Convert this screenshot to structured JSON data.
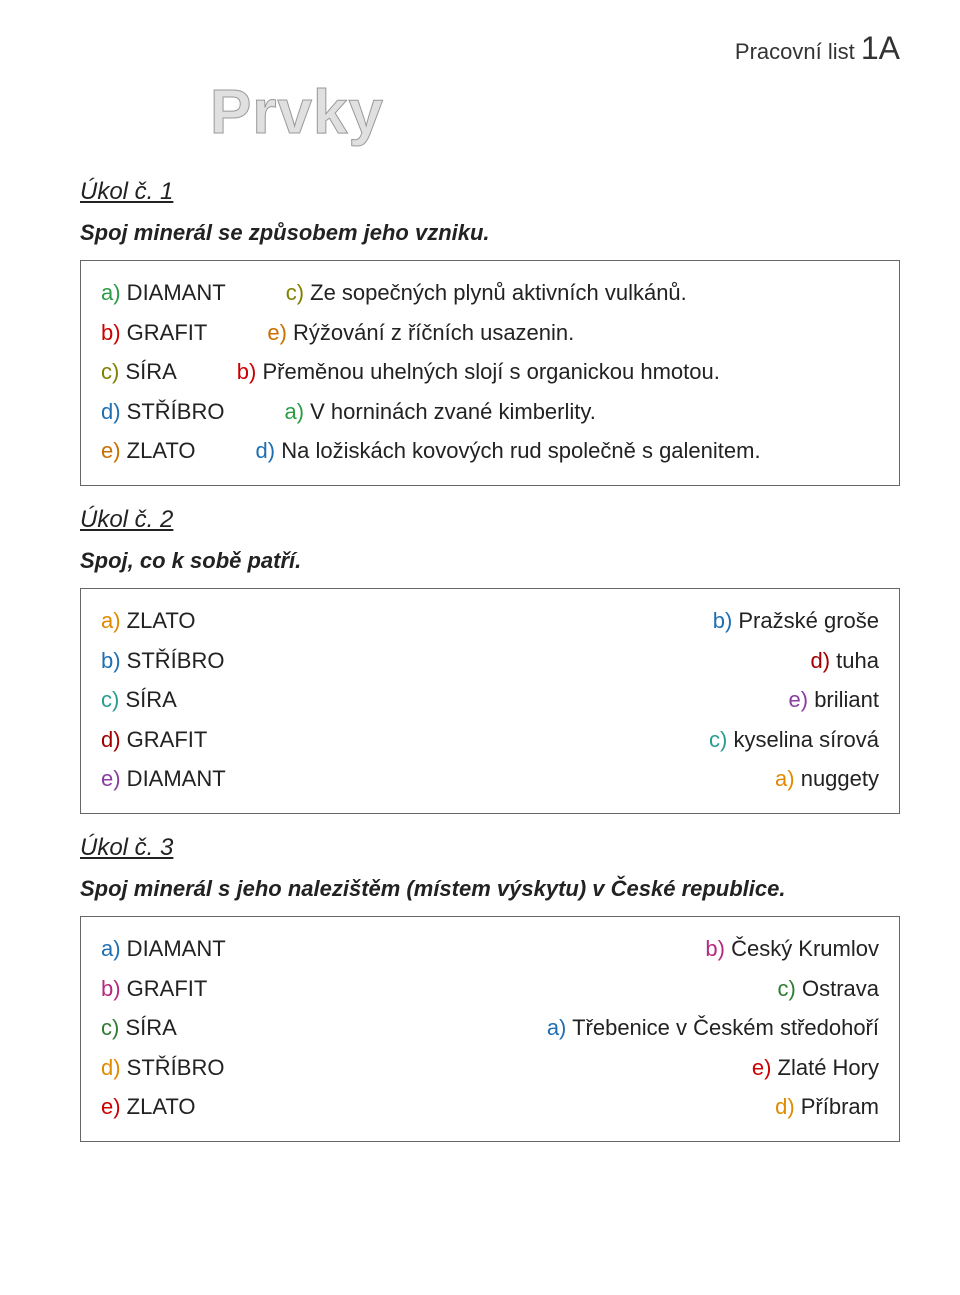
{
  "colors": {
    "red": "#cc0000",
    "darkred": "#a00000",
    "blue": "#1f6fb2",
    "green": "#2e9b46",
    "darkgreen": "#2f7d32",
    "olive": "#808000",
    "orange": "#e08a00",
    "darkorange": "#c87000",
    "purple": "#8a3fa0",
    "teal": "#2a9d8f",
    "magenta": "#b5297f",
    "black": "#222222",
    "gray_title": "#e0e0e0"
  },
  "header": {
    "label_prefix": "Pracovní list ",
    "label_code": "1A"
  },
  "title": "Prvky",
  "task1": {
    "heading": "Úkol č. 1",
    "sub": "Spoj minerál se způsobem jeho vzniku.",
    "rows": [
      {
        "l_letter_color": "green",
        "l_text": "a) DIAMANT",
        "r_letter_color": "olive",
        "r_text": "c) Ze sopečných plynů aktivních vulkánů."
      },
      {
        "l_letter_color": "red",
        "l_text": "b) GRAFIT",
        "r_letter_color": "darkorange",
        "r_text": "e) Rýžování z říčních usazenin."
      },
      {
        "l_letter_color": "olive",
        "l_text": "c) SÍRA",
        "r_letter_color": "red",
        "r_text": "b) Přeměnou uhelných slojí s organickou hmotou."
      },
      {
        "l_letter_color": "blue",
        "l_text": "d) STŘÍBRO",
        "r_letter_color": "green",
        "r_text": "a) V horninách zvané kimberlity."
      },
      {
        "l_letter_color": "darkorange",
        "l_text": "e) ZLATO",
        "r_letter_color": "blue",
        "r_text": "d) Na ložiskách kovových rud společně s galenitem."
      }
    ]
  },
  "task2": {
    "heading": "Úkol č. 2",
    "sub": "Spoj, co k sobě patří.",
    "rows": [
      {
        "l_letter_color": "orange",
        "l_text": "a) ZLATO",
        "r_letter_color": "blue",
        "r_text": "b) Pražské groše"
      },
      {
        "l_letter_color": "blue",
        "l_text": "b) STŘÍBRO",
        "r_letter_color": "darkred",
        "r_text": "d) tuha"
      },
      {
        "l_letter_color": "teal",
        "l_text": "c) SÍRA",
        "r_letter_color": "purple",
        "r_text": "e) briliant"
      },
      {
        "l_letter_color": "darkred",
        "l_text": "d) GRAFIT",
        "r_letter_color": "teal",
        "r_text": "c) kyselina sírová"
      },
      {
        "l_letter_color": "purple",
        "l_text": "e) DIAMANT",
        "r_letter_color": "orange",
        "r_text": "a) nuggety"
      }
    ]
  },
  "task3": {
    "heading": "Úkol č. 3",
    "sub": "Spoj minerál s jeho nalezištěm (místem výskytu) v České republice.",
    "rows": [
      {
        "l_letter_color": "blue",
        "l_text": "a) DIAMANT",
        "r_letter_color": "magenta",
        "r_text": "b) Český Krumlov"
      },
      {
        "l_letter_color": "magenta",
        "l_text": "b) GRAFIT",
        "r_letter_color": "darkgreen",
        "r_text": "c) Ostrava"
      },
      {
        "l_letter_color": "darkgreen",
        "l_text": "c) SÍRA",
        "r_letter_color": "blue",
        "r_text": "a) Třebenice v Českém středohoří"
      },
      {
        "l_letter_color": "orange",
        "l_text": "d) STŘÍBRO",
        "r_letter_color": "red",
        "r_text": "e) Zlaté Hory"
      },
      {
        "l_letter_color": "red",
        "l_text": "e) ZLATO",
        "r_letter_color": "orange",
        "r_text": "d) Příbram"
      }
    ]
  }
}
